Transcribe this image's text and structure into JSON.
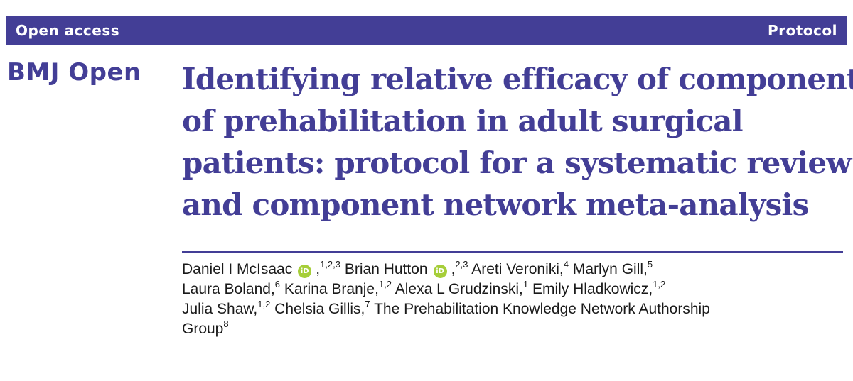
{
  "header": {
    "access_label": "Open access",
    "article_type": "Protocol"
  },
  "journal": {
    "name": "BMJ Open"
  },
  "article": {
    "title_lines": [
      "Identifying relative efficacy of components",
      "of prehabilitation in adult surgical",
      "patients: protocol for a systematic review",
      "and component network meta-analysis"
    ]
  },
  "authors": [
    {
      "name": "Daniel I McIsaac",
      "aff": "1,2,3",
      "orcid": true
    },
    {
      "name": "Brian Hutton",
      "aff": "2,3",
      "orcid": true
    },
    {
      "name": "Areti Veroniki",
      "aff": "4"
    },
    {
      "name": "Marlyn Gill",
      "aff": "5"
    },
    {
      "name": "Laura Boland",
      "aff": "6"
    },
    {
      "name": "Karina Branje",
      "aff": "1,2"
    },
    {
      "name": "Alexa L Grudzinski",
      "aff": "1"
    },
    {
      "name": "Emily Hladkowicz",
      "aff": "1,2"
    },
    {
      "name": "Julia Shaw",
      "aff": "1,2"
    },
    {
      "name": "Chelsia Gillis",
      "aff": "7"
    },
    {
      "name": "The Prehabilitation Knowledge Network Authorship",
      "aff": ""
    },
    {
      "name": "Group",
      "aff": "8"
    }
  ],
  "orcid_badge": "iD",
  "colors": {
    "brand": "#433e96",
    "orcid": "#a6ce39"
  }
}
